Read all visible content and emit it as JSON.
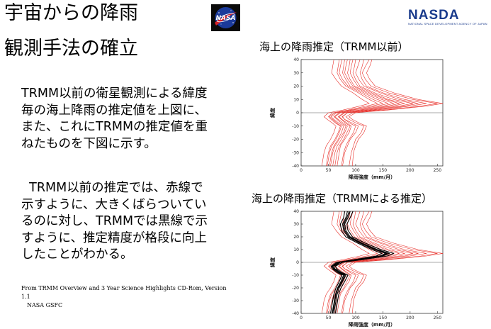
{
  "header": {
    "title_line1": "宇宙からの降雨",
    "title_line2": "観測手法の確立",
    "nasda_logo_text": "NASDA",
    "nasda_logo_subtext": "NATIONAL SPACE DEVELOPMENT AGENCY OF JAPAN",
    "nasa_logo_text": "NASA"
  },
  "body": {
    "paragraph1": "TRMM以前の衛星観測による緯度毎の海上降雨の推定値を上図に、また、これにTRMMの推定値を重ねたものを下図に示す。",
    "paragraph2": "TRMM以前の推定では、赤線で示すように、大きくばらついているのに対し、TRMMでは黒線で示すように、推定精度が格段に向上したことがわかる。",
    "footnote_line1": "From TRMM Overview and 3 Year Science Highlights CD-Rom, Version 1.1",
    "footnote_line2": "NASA GSFC"
  },
  "chart_data": [
    {
      "type": "line",
      "title": "海上の降雨推定（TRMM以前）",
      "xlabel": "降雨強度（mm/月）",
      "ylabel": "緯度",
      "xlim": [
        0,
        260
      ],
      "ylim": [
        -40,
        40
      ],
      "xticks": [
        0,
        50,
        100,
        150,
        200,
        250
      ],
      "yticks": [
        -40,
        -30,
        -20,
        -10,
        0,
        10,
        20,
        30,
        40
      ],
      "colors": {
        "pre_trmm": "#e8302a"
      },
      "y": [
        40,
        35,
        30,
        25,
        20,
        15,
        10,
        7,
        5,
        2,
        0,
        -3,
        -5,
        -8,
        -10,
        -15,
        -20,
        -25,
        -30,
        -35,
        -40
      ],
      "series_pre_trmm": [
        [
          115,
          112,
          108,
          112,
          120,
          150,
          190,
          230,
          200,
          140,
          85,
          75,
          80,
          95,
          105,
          100,
          90,
          85,
          80,
          78,
          76
        ],
        [
          100,
          98,
          95,
          100,
          108,
          135,
          170,
          205,
          180,
          125,
          80,
          70,
          75,
          85,
          92,
          88,
          80,
          72,
          70,
          68,
          66
        ],
        [
          90,
          88,
          85,
          90,
          98,
          125,
          155,
          180,
          160,
          110,
          72,
          62,
          68,
          78,
          85,
          80,
          74,
          66,
          62,
          60,
          58
        ],
        [
          80,
          78,
          76,
          82,
          90,
          115,
          140,
          160,
          140,
          95,
          65,
          55,
          60,
          70,
          78,
          74,
          68,
          60,
          56,
          54,
          52
        ],
        [
          70,
          68,
          66,
          72,
          82,
          105,
          125,
          140,
          120,
          85,
          58,
          50,
          55,
          64,
          72,
          68,
          62,
          54,
          50,
          48,
          46
        ],
        [
          125,
          118,
          112,
          118,
          128,
          160,
          205,
          250,
          220,
          150,
          95,
          82,
          88,
          102,
          115,
          110,
          100,
          96,
          92,
          90,
          88
        ],
        [
          108,
          104,
          100,
          106,
          115,
          145,
          180,
          215,
          190,
          132,
          85,
          76,
          80,
          90,
          100,
          96,
          88,
          82,
          78,
          76,
          74
        ],
        [
          60,
          58,
          56,
          64,
          74,
          95,
          112,
          125,
          108,
          76,
          50,
          42,
          48,
          58,
          64,
          60,
          54,
          46,
          42,
          40,
          38
        ],
        [
          95,
          92,
          90,
          96,
          104,
          130,
          160,
          190,
          168,
          118,
          78,
          68,
          74,
          82,
          90,
          84,
          78,
          70,
          66,
          64,
          62
        ],
        [
          85,
          82,
          80,
          86,
          95,
          120,
          148,
          170,
          150,
          104,
          70,
          60,
          66,
          74,
          82,
          78,
          70,
          62,
          58,
          56,
          54
        ],
        [
          130,
          126,
          120,
          126,
          136,
          170,
          215,
          260,
          230,
          158,
          100,
          88,
          94,
          108,
          120,
          115,
          105,
          100,
          96,
          95,
          94
        ],
        [
          75,
          72,
          70,
          76,
          86,
          110,
          132,
          150,
          130,
          90,
          62,
          52,
          58,
          66,
          74,
          70,
          64,
          56,
          52,
          50,
          48
        ]
      ]
    },
    {
      "type": "line",
      "title": "海上の降雨推定（TRMMによる推定）",
      "xlabel": "降雨強度（mm/月）",
      "ylabel": "緯度",
      "xlim": [
        0,
        260
      ],
      "ylim": [
        -40,
        40
      ],
      "xticks": [
        0,
        50,
        100,
        150,
        200,
        250
      ],
      "yticks": [
        -40,
        -30,
        -20,
        -10,
        0,
        10,
        20,
        30,
        40
      ],
      "colors": {
        "pre_trmm": "#e8302a",
        "trmm": "#000000"
      },
      "y": [
        40,
        35,
        30,
        25,
        20,
        15,
        10,
        7,
        5,
        2,
        0,
        -3,
        -5,
        -8,
        -10,
        -15,
        -20,
        -25,
        -30,
        -35,
        -40
      ],
      "series_pre_trmm": [
        [
          115,
          112,
          108,
          112,
          120,
          150,
          190,
          230,
          200,
          140,
          85,
          75,
          80,
          95,
          105,
          100,
          90,
          85,
          80,
          78,
          76
        ],
        [
          100,
          98,
          95,
          100,
          108,
          135,
          170,
          205,
          180,
          125,
          80,
          70,
          75,
          85,
          92,
          88,
          80,
          72,
          70,
          68,
          66
        ],
        [
          90,
          88,
          85,
          90,
          98,
          125,
          155,
          180,
          160,
          110,
          72,
          62,
          68,
          78,
          85,
          80,
          74,
          66,
          62,
          60,
          58
        ],
        [
          80,
          78,
          76,
          82,
          90,
          115,
          140,
          160,
          140,
          95,
          65,
          55,
          60,
          70,
          78,
          74,
          68,
          60,
          56,
          54,
          52
        ],
        [
          70,
          68,
          66,
          72,
          82,
          105,
          125,
          140,
          120,
          85,
          58,
          50,
          55,
          64,
          72,
          68,
          62,
          54,
          50,
          48,
          46
        ],
        [
          125,
          118,
          112,
          118,
          128,
          160,
          205,
          250,
          220,
          150,
          95,
          82,
          88,
          102,
          115,
          110,
          100,
          96,
          92,
          90,
          88
        ],
        [
          108,
          104,
          100,
          106,
          115,
          145,
          180,
          215,
          190,
          132,
          85,
          76,
          80,
          90,
          100,
          96,
          88,
          82,
          78,
          76,
          74
        ],
        [
          60,
          58,
          56,
          64,
          74,
          95,
          112,
          125,
          108,
          76,
          50,
          42,
          48,
          58,
          64,
          60,
          54,
          46,
          42,
          40,
          38
        ],
        [
          95,
          92,
          90,
          96,
          104,
          130,
          160,
          190,
          168,
          118,
          78,
          68,
          74,
          82,
          90,
          84,
          78,
          70,
          66,
          64,
          62
        ],
        [
          85,
          82,
          80,
          86,
          95,
          120,
          148,
          170,
          150,
          104,
          70,
          60,
          66,
          74,
          82,
          78,
          70,
          62,
          58,
          56,
          54
        ],
        [
          130,
          126,
          120,
          126,
          136,
          170,
          215,
          260,
          230,
          158,
          100,
          88,
          94,
          108,
          120,
          115,
          105,
          100,
          96,
          95,
          94
        ],
        [
          75,
          72,
          70,
          76,
          86,
          110,
          132,
          150,
          130,
          90,
          62,
          52,
          58,
          66,
          74,
          70,
          64,
          56,
          52,
          50,
          48
        ]
      ],
      "series_trmm": [
        [
          90,
          86,
          80,
          82,
          90,
          112,
          140,
          162,
          150,
          105,
          72,
          60,
          62,
          72,
          82,
          76,
          70,
          66,
          64,
          62,
          60
        ],
        [
          85,
          82,
          76,
          78,
          86,
          108,
          135,
          155,
          145,
          100,
          68,
          57,
          59,
          69,
          78,
          73,
          67,
          63,
          61,
          59,
          57
        ],
        [
          95,
          90,
          84,
          86,
          94,
          118,
          146,
          170,
          158,
          110,
          76,
          63,
          65,
          75,
          86,
          80,
          73,
          69,
          67,
          65,
          63
        ],
        [
          80,
          78,
          72,
          74,
          82,
          104,
          130,
          148,
          138,
          96,
          65,
          55,
          57,
          66,
          75,
          70,
          64,
          60,
          58,
          56,
          54
        ],
        [
          88,
          84,
          78,
          80,
          88,
          110,
          138,
          158,
          148,
          102,
          70,
          58,
          60,
          70,
          80,
          75,
          68,
          64,
          62,
          60,
          58
        ]
      ]
    }
  ]
}
